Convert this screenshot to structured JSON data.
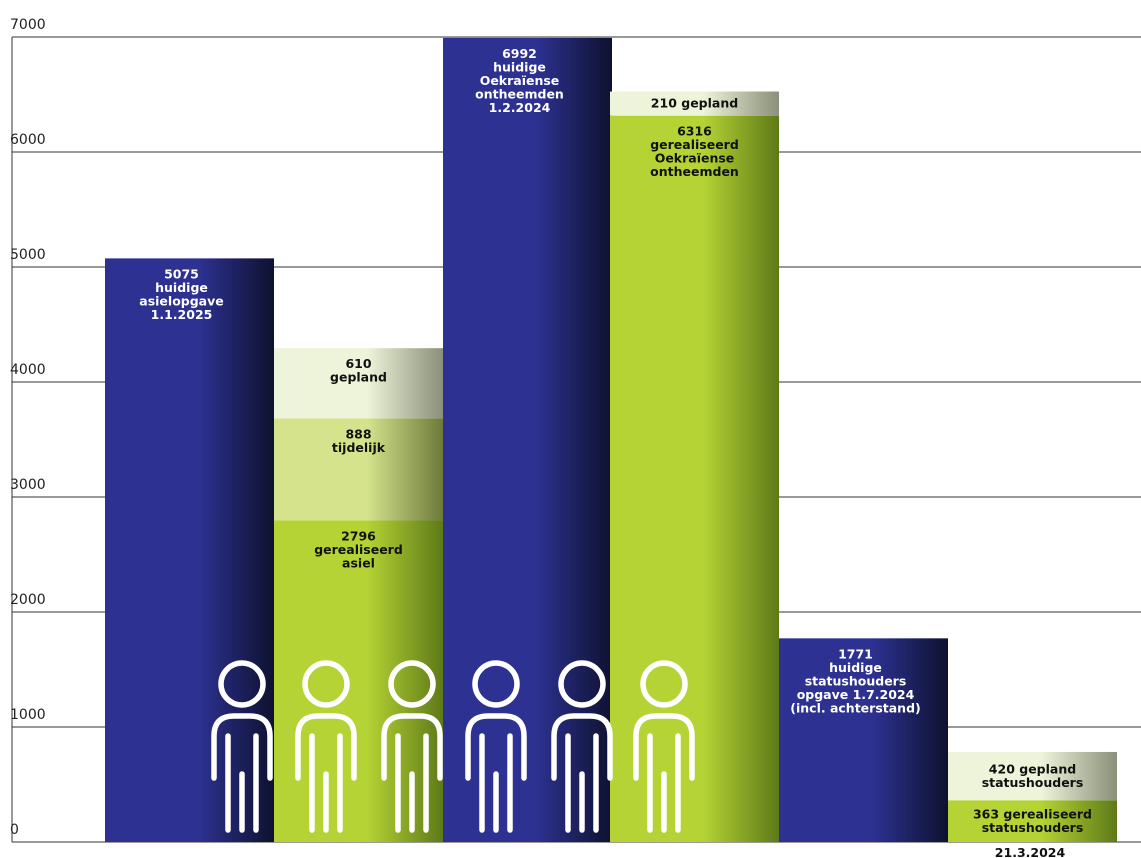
{
  "chart_data": {
    "type": "bar",
    "stacked": true,
    "ylim": [
      0,
      7000
    ],
    "yticks": [
      "0",
      "1000",
      "2000",
      "3000",
      "4000",
      "5000",
      "6000",
      "7000"
    ],
    "grid": true,
    "colors": {
      "opgave": "#2d3192",
      "gerealiseerd": "#b5d334",
      "tijdelijk": "#d4e38c",
      "gepland": "#eef4d9"
    },
    "bars": [
      {
        "kind": "opgave",
        "segments": [
          {
            "value": 5075,
            "color_key": "opgave",
            "lines": [
              "5075",
              "huidige",
              "asielopgave",
              "1.1.2025"
            ]
          }
        ]
      },
      {
        "kind": "stack",
        "segments": [
          {
            "value": 2796,
            "color_key": "gerealiseerd",
            "lines": [
              "2796",
              "gerealiseerd",
              "asiel"
            ]
          },
          {
            "value": 888,
            "color_key": "tijdelijk",
            "lines": [
              "888",
              "tijdelijk"
            ]
          },
          {
            "value": 610,
            "color_key": "gepland",
            "lines": [
              "610",
              "gepland"
            ]
          }
        ]
      },
      {
        "kind": "opgave",
        "segments": [
          {
            "value": 6992,
            "color_key": "opgave",
            "lines": [
              "6992",
              "huidige",
              "Oekraïense",
              "ontheemden",
              "1.2.2024"
            ]
          }
        ]
      },
      {
        "kind": "stack",
        "segments": [
          {
            "value": 6316,
            "color_key": "gerealiseerd",
            "lines": [
              "6316",
              "gerealiseerd",
              "Oekraïense",
              "ontheemden"
            ]
          },
          {
            "value": 210,
            "color_key": "gepland",
            "lines": [
              "210 gepland"
            ]
          }
        ]
      },
      {
        "kind": "opgave",
        "segments": [
          {
            "value": 1771,
            "color_key": "opgave",
            "lines": [
              "1771",
              "huidige",
              "statushouders",
              "opgave 1.7.2024",
              "(incl. achterstand)"
            ]
          }
        ]
      },
      {
        "kind": "stack",
        "segments": [
          {
            "value": 363,
            "color_key": "gerealiseerd",
            "lines": [
              "363 gerealiseerd",
              "statushouders"
            ]
          },
          {
            "value": 420,
            "color_key": "gepland",
            "lines": [
              "420 gepland",
              "statushouders"
            ]
          }
        ]
      }
    ],
    "annotations": [
      "21.3.2024"
    ],
    "icons": [
      "person-icon",
      "person-icon",
      "person-icon",
      "person-icon",
      "person-icon",
      "person-icon"
    ]
  }
}
